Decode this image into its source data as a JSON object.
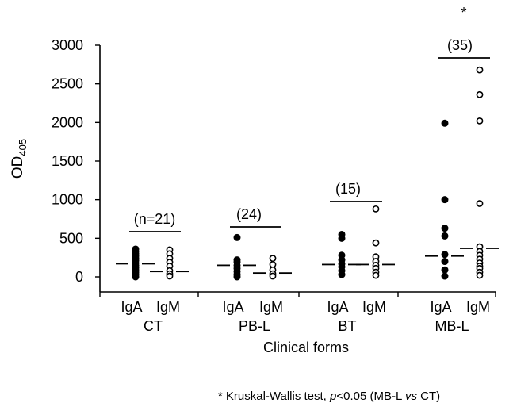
{
  "chart_data": {
    "type": "scatter",
    "ylabel": {
      "main": "OD",
      "sub": "405"
    },
    "xlabel": "Clinical forms",
    "ylim": [
      0,
      3000
    ],
    "yticks": [
      "0",
      "500",
      "1000",
      "1500",
      "2000",
      "2500",
      "3000"
    ],
    "grid": false,
    "groups": [
      {
        "name": "CT",
        "n_label": "(n=21)",
        "iga_label": "IgA",
        "igm_label": "IgM",
        "iga": {
          "values": [
            360,
            330,
            300,
            270,
            240,
            210,
            180,
            150,
            120,
            90,
            60,
            30,
            0
          ],
          "median": 170
        },
        "igm": {
          "values": [
            350,
            300,
            240,
            190,
            140,
            80,
            40,
            10
          ],
          "median": 70
        }
      },
      {
        "name": "PB-L",
        "n_label": "(24)",
        "iga_label": "IgA",
        "igm_label": "IgM",
        "iga": {
          "values": [
            510,
            220,
            190,
            150,
            110,
            70,
            30,
            0
          ],
          "median": 150
        },
        "igm": {
          "values": [
            240,
            160,
            90,
            40,
            10
          ],
          "median": 50
        }
      },
      {
        "name": "BT",
        "n_label": "(15)",
        "iga_label": "IgA",
        "igm_label": "IgM",
        "iga": {
          "values": [
            550,
            500,
            280,
            220,
            170,
            130,
            80,
            30
          ],
          "median": 160
        },
        "igm": {
          "values": [
            880,
            440,
            260,
            200,
            150,
            110,
            60,
            20
          ],
          "median": 160
        }
      },
      {
        "name": "MB-L",
        "n_label": "(35)",
        "iga_label": "IgA",
        "igm_label": "IgM",
        "iga": {
          "values": [
            1990,
            1000,
            630,
            530,
            290,
            200,
            90,
            10
          ],
          "median": 270
        },
        "igm": {
          "values": [
            2680,
            2360,
            2020,
            950,
            390,
            330,
            280,
            230,
            180,
            140,
            110,
            60,
            20
          ],
          "median": 370
        }
      }
    ],
    "significance_marker": "*",
    "footnote": {
      "prefix": "* Kruskal-Wallis test, ",
      "p": "p",
      "middle": "<0.05 (MB-L ",
      "vs": "vs",
      "suffix": " CT)"
    }
  }
}
